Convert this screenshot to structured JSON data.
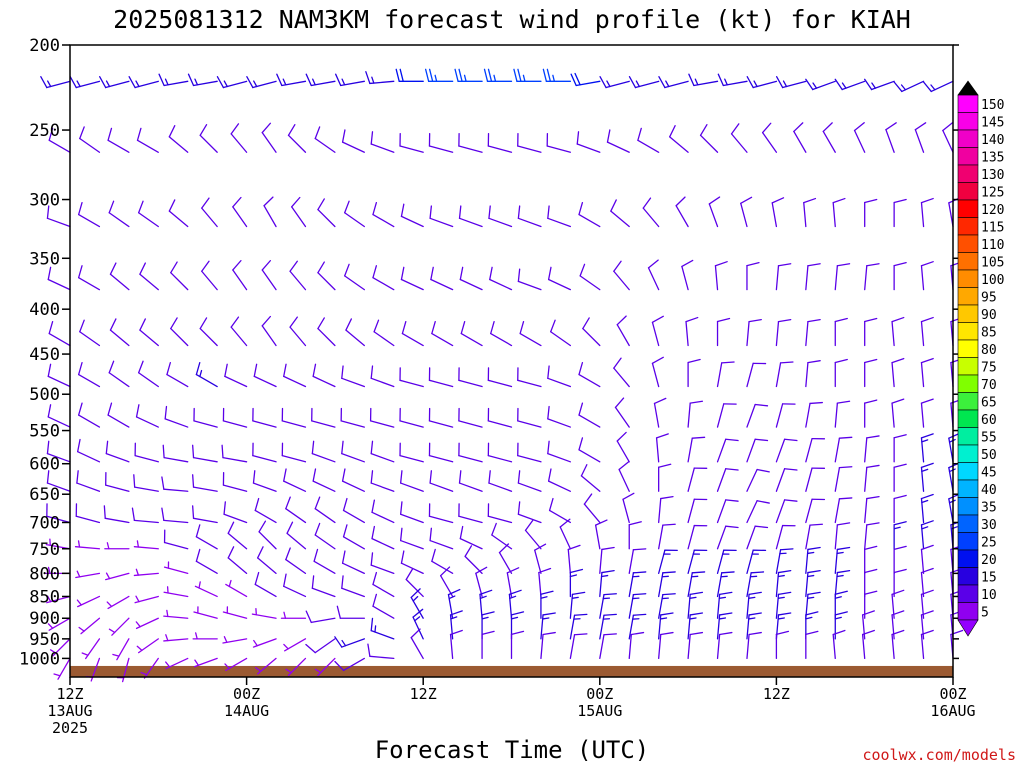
{
  "chart_data": {
    "type": "wind_barb_profile",
    "title": "2025081312 NAM3KM forecast wind profile (kt) for KIAH",
    "xlabel": "Forecast Time (UTC)",
    "credit": "coolwx.com/models",
    "y_axis": {
      "quantity": "pressure (hPa)",
      "range": [
        1050,
        200
      ],
      "ticks": [
        "200",
        "250",
        "300",
        "350",
        "400",
        "450",
        "500",
        "550",
        "600",
        "650",
        "700",
        "750",
        "800",
        "850",
        "900",
        "950",
        "1000"
      ]
    },
    "x_axis": {
      "range_hours": [
        0,
        60
      ],
      "ticks": [
        {
          "hour": 0,
          "line1": "12Z",
          "line2": "13AUG",
          "line3": "2025"
        },
        {
          "hour": 12,
          "line1": "00Z",
          "line2": "14AUG",
          "line3": ""
        },
        {
          "hour": 24,
          "line1": "12Z",
          "line2": "",
          "line3": ""
        },
        {
          "hour": 36,
          "line1": "00Z",
          "line2": "15AUG",
          "line3": ""
        },
        {
          "hour": 48,
          "line1": "12Z",
          "line2": "",
          "line3": ""
        },
        {
          "hour": 60,
          "line1": "00Z",
          "line2": "16AUG",
          "line3": ""
        }
      ]
    },
    "colorbar": {
      "labels": [
        "150",
        "145",
        "140",
        "135",
        "130",
        "125",
        "120",
        "115",
        "110",
        "105",
        "100",
        "95",
        "90",
        "85",
        "80",
        "75",
        "70",
        "65",
        "60",
        "55",
        "50",
        "45",
        "40",
        "35",
        "30",
        "25",
        "20",
        "15",
        "10",
        "5"
      ],
      "colors": [
        "#ff00ff",
        "#f800e8",
        "#f000c8",
        "#f000a0",
        "#f00070",
        "#f00040",
        "#ff0000",
        "#ff2800",
        "#ff5000",
        "#ff7000",
        "#ff8c00",
        "#ffa800",
        "#ffc800",
        "#ffe600",
        "#ffff00",
        "#c8ff00",
        "#80ff00",
        "#3cf03c",
        "#00e650",
        "#00eea0",
        "#00f0d0",
        "#00d8ff",
        "#00b4ff",
        "#0090ff",
        "#0064ff",
        "#0040ff",
        "#0010f0",
        "#2800e0",
        "#5a00e8",
        "#9000f0"
      ],
      "top_arrow": "#000000",
      "bottom_arrow": "#9400ff"
    },
    "ground_color": "#9b5a32",
    "levels_hpa": [
      220,
      265,
      322,
      380,
      440,
      490,
      545,
      597,
      645,
      700,
      750,
      800,
      850,
      900,
      950,
      1000
    ],
    "times_hours": [
      0,
      2,
      4,
      6,
      8,
      10,
      12,
      14,
      16,
      18,
      20,
      22,
      24,
      26,
      28,
      30,
      32,
      34,
      36,
      38,
      40,
      42,
      44,
      46,
      48,
      50,
      52,
      54,
      56,
      58,
      60
    ],
    "wind": {
      "dir_deg": [
        [
          255,
          255,
          255,
          255,
          260,
          260,
          255,
          255,
          260,
          260,
          260,
          265,
          270,
          270,
          270,
          270,
          270,
          270,
          260,
          255,
          255,
          255,
          260,
          260,
          255,
          255,
          250,
          250,
          250,
          245,
          245
        ],
        [
          300,
          305,
          300,
          300,
          310,
          315,
          320,
          325,
          315,
          305,
          295,
          290,
          285,
          285,
          285,
          285,
          285,
          285,
          290,
          295,
          300,
          310,
          315,
          320,
          325,
          330,
          330,
          335,
          340,
          340,
          335
        ],
        [
          290,
          300,
          305,
          305,
          310,
          320,
          325,
          330,
          325,
          315,
          305,
          300,
          295,
          290,
          290,
          290,
          290,
          290,
          300,
          310,
          320,
          330,
          340,
          345,
          350,
          355,
          355,
          0,
          0,
          355,
          350
        ],
        [
          295,
          300,
          310,
          310,
          315,
          320,
          325,
          325,
          320,
          315,
          305,
          300,
          295,
          295,
          295,
          295,
          290,
          295,
          305,
          320,
          335,
          345,
          355,
          0,
          5,
          5,
          5,
          5,
          0,
          355,
          355
        ],
        [
          300,
          305,
          310,
          310,
          315,
          315,
          320,
          325,
          320,
          315,
          310,
          305,
          300,
          300,
          300,
          300,
          300,
          305,
          315,
          330,
          345,
          355,
          0,
          5,
          5,
          5,
          0,
          0,
          355,
          355,
          355
        ],
        [
          295,
          300,
          305,
          305,
          300,
          300,
          295,
          295,
          295,
          295,
          290,
          290,
          285,
          285,
          285,
          285,
          285,
          290,
          300,
          320,
          345,
          0,
          10,
          15,
          10,
          5,
          0,
          0,
          355,
          355,
          355
        ],
        [
          295,
          300,
          300,
          295,
          290,
          285,
          285,
          285,
          285,
          285,
          285,
          285,
          285,
          285,
          285,
          285,
          285,
          290,
          300,
          325,
          350,
          5,
          15,
          20,
          15,
          10,
          5,
          0,
          355,
          355,
          355
        ],
        [
          290,
          295,
          290,
          285,
          280,
          280,
          280,
          285,
          285,
          290,
          290,
          290,
          285,
          285,
          285,
          285,
          285,
          290,
          300,
          330,
          355,
          10,
          20,
          20,
          20,
          15,
          10,
          5,
          0,
          355,
          350
        ],
        [
          290,
          290,
          285,
          280,
          275,
          280,
          285,
          290,
          295,
          295,
          295,
          290,
          290,
          290,
          290,
          290,
          290,
          295,
          310,
          335,
          0,
          15,
          20,
          25,
          20,
          15,
          10,
          5,
          0,
          355,
          350
        ],
        [
          285,
          285,
          280,
          275,
          275,
          280,
          290,
          300,
          305,
          305,
          300,
          295,
          290,
          285,
          285,
          285,
          290,
          300,
          320,
          345,
          5,
          15,
          20,
          25,
          20,
          15,
          10,
          5,
          0,
          355,
          350
        ],
        [
          280,
          275,
          270,
          275,
          285,
          300,
          310,
          315,
          310,
          305,
          300,
          295,
          290,
          290,
          295,
          305,
          320,
          335,
          350,
          0,
          10,
          15,
          20,
          20,
          15,
          10,
          5,
          5,
          0,
          355,
          355
        ],
        [
          270,
          260,
          255,
          265,
          285,
          300,
          310,
          310,
          305,
          300,
          295,
          290,
          295,
          300,
          315,
          330,
          345,
          355,
          5,
          10,
          15,
          15,
          15,
          15,
          10,
          5,
          5,
          0,
          0,
          355,
          355
        ],
        [
          255,
          245,
          240,
          255,
          280,
          295,
          300,
          300,
          295,
          290,
          290,
          300,
          315,
          330,
          345,
          350,
          355,
          0,
          5,
          10,
          10,
          10,
          10,
          10,
          5,
          5,
          5,
          0,
          0,
          355,
          355
        ],
        [
          240,
          230,
          225,
          245,
          275,
          285,
          285,
          280,
          270,
          260,
          270,
          300,
          330,
          350,
          355,
          355,
          0,
          5,
          10,
          10,
          10,
          5,
          5,
          5,
          5,
          5,
          0,
          0,
          355,
          355,
          355
        ],
        [
          225,
          215,
          210,
          235,
          265,
          270,
          260,
          250,
          240,
          235,
          250,
          290,
          335,
          355,
          0,
          0,
          5,
          10,
          10,
          10,
          5,
          5,
          5,
          5,
          5,
          0,
          0,
          355,
          355,
          355,
          355
        ],
        [
          210,
          200,
          195,
          215,
          245,
          250,
          240,
          230,
          225,
          225,
          240,
          275,
          330,
          355,
          0,
          0,
          5,
          10,
          10,
          5,
          5,
          5,
          5,
          5,
          0,
          0,
          355,
          355,
          355,
          355,
          355
        ]
      ],
      "speed_kt": [
        [
          15,
          15,
          15,
          15,
          15,
          15,
          15,
          15,
          15,
          15,
          15,
          15,
          20,
          25,
          25,
          25,
          25,
          25,
          20,
          15,
          15,
          15,
          15,
          15,
          15,
          15,
          15,
          15,
          15,
          15,
          15
        ],
        [
          10,
          10,
          10,
          10,
          10,
          10,
          10,
          10,
          10,
          10,
          10,
          10,
          10,
          10,
          10,
          10,
          10,
          10,
          10,
          10,
          10,
          10,
          10,
          10,
          10,
          10,
          10,
          10,
          10,
          10,
          10
        ],
        [
          10,
          10,
          10,
          10,
          10,
          10,
          10,
          10,
          10,
          10,
          10,
          10,
          10,
          10,
          10,
          10,
          10,
          10,
          10,
          10,
          10,
          10,
          10,
          10,
          10,
          10,
          10,
          10,
          10,
          10,
          10
        ],
        [
          10,
          10,
          10,
          10,
          10,
          10,
          10,
          10,
          10,
          10,
          10,
          10,
          10,
          10,
          10,
          10,
          10,
          10,
          10,
          10,
          10,
          10,
          10,
          10,
          10,
          10,
          10,
          10,
          10,
          10,
          10
        ],
        [
          10,
          10,
          10,
          10,
          10,
          10,
          10,
          10,
          10,
          10,
          10,
          10,
          10,
          10,
          10,
          10,
          10,
          10,
          10,
          10,
          10,
          10,
          10,
          10,
          10,
          10,
          10,
          10,
          10,
          10,
          10
        ],
        [
          10,
          10,
          10,
          10,
          10,
          15,
          10,
          10,
          10,
          10,
          10,
          10,
          10,
          10,
          10,
          10,
          10,
          10,
          10,
          10,
          10,
          10,
          10,
          10,
          10,
          10,
          10,
          10,
          10,
          10,
          10
        ],
        [
          10,
          10,
          10,
          10,
          10,
          10,
          10,
          10,
          10,
          10,
          10,
          10,
          10,
          10,
          10,
          10,
          10,
          10,
          10,
          10,
          10,
          10,
          10,
          10,
          10,
          10,
          10,
          10,
          10,
          10,
          10
        ],
        [
          10,
          10,
          10,
          10,
          10,
          10,
          10,
          10,
          10,
          10,
          10,
          10,
          10,
          10,
          10,
          10,
          10,
          10,
          10,
          10,
          10,
          10,
          10,
          10,
          10,
          10,
          10,
          10,
          10,
          15,
          15
        ],
        [
          10,
          10,
          10,
          10,
          10,
          10,
          10,
          10,
          10,
          10,
          10,
          10,
          10,
          10,
          10,
          10,
          10,
          10,
          10,
          10,
          10,
          10,
          10,
          10,
          10,
          10,
          10,
          10,
          10,
          15,
          15
        ],
        [
          10,
          10,
          10,
          10,
          10,
          10,
          10,
          10,
          10,
          10,
          10,
          10,
          10,
          10,
          10,
          10,
          10,
          10,
          10,
          10,
          10,
          10,
          10,
          10,
          10,
          10,
          10,
          10,
          10,
          15,
          15
        ],
        [
          5,
          5,
          5,
          5,
          10,
          10,
          10,
          10,
          10,
          10,
          10,
          10,
          10,
          10,
          10,
          10,
          10,
          10,
          10,
          10,
          10,
          10,
          10,
          10,
          10,
          10,
          10,
          10,
          15,
          15,
          15
        ],
        [
          5,
          5,
          5,
          5,
          5,
          10,
          10,
          10,
          10,
          10,
          10,
          10,
          10,
          10,
          10,
          10,
          10,
          10,
          10,
          10,
          15,
          15,
          15,
          15,
          15,
          15,
          15,
          10,
          10,
          10,
          10
        ],
        [
          5,
          5,
          5,
          5,
          5,
          5,
          5,
          10,
          10,
          10,
          10,
          10,
          10,
          10,
          10,
          10,
          10,
          15,
          15,
          15,
          15,
          15,
          15,
          15,
          15,
          15,
          15,
          10,
          10,
          10,
          10
        ],
        [
          5,
          5,
          5,
          5,
          5,
          5,
          5,
          5,
          5,
          10,
          10,
          10,
          15,
          15,
          15,
          15,
          15,
          15,
          15,
          15,
          15,
          15,
          15,
          15,
          15,
          15,
          15,
          10,
          10,
          10,
          10
        ],
        [
          5,
          5,
          5,
          5,
          5,
          5,
          5,
          5,
          5,
          10,
          15,
          15,
          15,
          15,
          15,
          15,
          15,
          15,
          15,
          15,
          15,
          15,
          15,
          15,
          15,
          15,
          15,
          10,
          10,
          10,
          10
        ],
        [
          5,
          5,
          5,
          5,
          5,
          5,
          5,
          5,
          5,
          5,
          10,
          10,
          10,
          10,
          10,
          10,
          10,
          10,
          10,
          10,
          10,
          10,
          10,
          10,
          10,
          10,
          10,
          10,
          10,
          10,
          10
        ]
      ]
    }
  }
}
